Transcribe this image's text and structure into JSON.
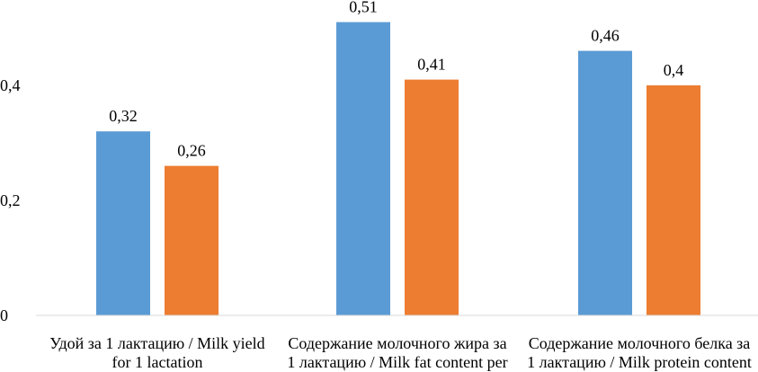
{
  "chart_data": {
    "type": "bar",
    "categories": [
      [
        "Удой за 1 лактацию / Milk yield",
        "for 1 lactation"
      ],
      [
        "Содержание молочного жира за",
        "1 лактацию / Milk fat content per"
      ],
      [
        "Содержание молочного белка за",
        "1 лактацию / Milk protein content"
      ]
    ],
    "series": [
      {
        "values": [
          0.32,
          0.51,
          0.46
        ],
        "labels": [
          "0,32",
          "0,51",
          "0,46"
        ],
        "color": "#5b9bd5"
      },
      {
        "values": [
          0.26,
          0.41,
          0.4
        ],
        "labels": [
          "0,26",
          "0,41",
          "0,4"
        ],
        "color": "#ed7d31"
      }
    ],
    "yticks": [
      {
        "value": 0,
        "label": "0"
      },
      {
        "value": 0.2,
        "label": "0,2"
      },
      {
        "value": 0.4,
        "label": "0,4"
      }
    ],
    "ylim": [
      0,
      0.6
    ],
    "grid": false,
    "axis_line_color": "#d9d9d9"
  }
}
